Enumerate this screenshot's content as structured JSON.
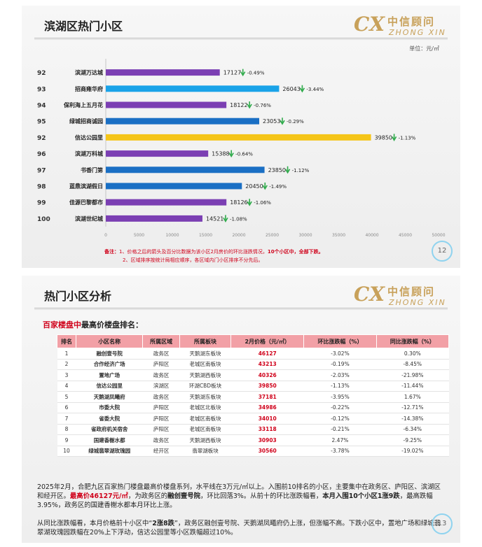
{
  "slide1": {
    "title": "滨湖区热门小区",
    "logo": {
      "mark": "CX",
      "cn": "中信顾问",
      "en": "ZHONG XIN"
    },
    "unit": "单位：元/㎡",
    "page_number": "12",
    "note_lines": [
      {
        "prefix": "备注：",
        "text": "1、价格之后的箭头及百分比数据为该小区2月房价的环比涨跌情况，",
        "bold": "10个小区中，全部下跌。"
      },
      {
        "prefix": "",
        "text": "2、区域排序按统计局相应顺序，各区域内门小区排序不分先后。",
        "bold": ""
      }
    ],
    "chart_data": {
      "type": "bar",
      "orientation": "horizontal",
      "categories": [
        "滨湖万达城",
        "招商雍华府",
        "保利海上五月花",
        "绿城招商诚园",
        "信达公园里",
        "滨湖万科城",
        "书香门第",
        "蓝鼎滨湖假日",
        "佳源巴黎都市",
        "滨湖世纪城"
      ],
      "ranks": [
        "92",
        "93",
        "94",
        "95",
        "92",
        "96",
        "97",
        "98",
        "99",
        "100"
      ],
      "values": [
        17127,
        26043,
        18122,
        23053,
        39850,
        15388,
        23850,
        20450,
        18126,
        14521
      ],
      "changes": [
        "-0.49%",
        "-3.44%",
        "-0.76%",
        "-0.29%",
        "-1.13%",
        "-0.64%",
        "-1.12%",
        "-1.49%",
        "-1.06%",
        "-1.08%"
      ],
      "colors": [
        "#7b3fb3",
        "#1aa3e8",
        "#7b3fb3",
        "#1a6fc4",
        "#f5c518",
        "#7b3fb3",
        "#1a6fc4",
        "#1a6fc4",
        "#7b3fb3",
        "#7b3fb3"
      ],
      "arrow_color": "#2eaa4a",
      "xlim": [
        0,
        50000
      ],
      "xticks": [
        "0",
        "5000",
        "10000",
        "15000",
        "20000",
        "25000",
        "30000",
        "35000",
        "40000",
        "45000",
        "50000"
      ],
      "grid": false
    }
  },
  "slide2": {
    "title": "热门小区分析",
    "logo": {
      "mark": "CX",
      "cn": "中信顾问",
      "en": "ZHONG XIN"
    },
    "subhead_red": "百家楼盘中",
    "subhead_rest": "最高价楼盘排名：",
    "page_number": "13",
    "table": {
      "headers": [
        "排名",
        "小区名称",
        "所属区域",
        "所属板块",
        "2月价格（元/㎡）",
        "环比涨跌幅（%）",
        "同比涨跌幅（%）"
      ],
      "rows": [
        [
          "1",
          "融创壹号院",
          "政务区",
          "天鹅湖东板块",
          "46127",
          "-3.02%",
          "0.30%"
        ],
        [
          "2",
          "合作经济广场",
          "庐阳区",
          "老城区南板块",
          "43213",
          "-0.19%",
          "-8.45%"
        ],
        [
          "3",
          "置地广场",
          "政务区",
          "天鹅湖西板块",
          "40326",
          "-2.03%",
          "-21.98%"
        ],
        [
          "4",
          "信达公园里",
          "滨湖区",
          "环湖CBD板块",
          "39850",
          "-1.13%",
          "-11.44%"
        ],
        [
          "5",
          "天鹅湖凤曦府",
          "政务区",
          "天鹅湖东板块",
          "37181",
          "-3.95%",
          "1.67%"
        ],
        [
          "6",
          "市委大院",
          "庐阳区",
          "老城区北板块",
          "34986",
          "-0.22%",
          "-12.71%"
        ],
        [
          "7",
          "省委大院",
          "庐阳区",
          "老城区南板块",
          "34010",
          "-0.12%",
          "-14.38%"
        ],
        [
          "8",
          "省政府机关宿舍",
          "庐阳区",
          "老城区南板块",
          "33118",
          "-0.21%",
          "-6.34%"
        ],
        [
          "9",
          "国建香榭水都",
          "政务区",
          "天鹅湖西板块",
          "30903",
          "2.47%",
          "-9.25%"
        ],
        [
          "10",
          "绿城翡翠湖玫瑰园",
          "经开区",
          "翡翠湖板块",
          "30560",
          "-3.78%",
          "-19.02%"
        ]
      ]
    },
    "para1": {
      "a": "2025年2月，合肥九区百家热门楼盘最高价楼盘系列，水平线在3万元/㎡以上。入围前10排名的小区，主要集中在政务区、庐阳区、滨湖区和经开区。",
      "red": "最高价46127元/㎡",
      "b": "，为政务区的",
      "bold1": "融创壹号院",
      "c": "，环比回落3%。从前十的环比涨跌幅看，",
      "bold2": "本月入围10个小区1涨9跌",
      "d": "，最高跌幅3.95%，政务区的国建香榭水都本月环比上涨。"
    },
    "para2": {
      "a": "从同比涨跌幅看，本月价格前十小区中“",
      "bold": "2涨8跌",
      "b": "”，政务区融创壹号院、天鹅湖凤曦府仍上涨，但涨幅不高。下跌小区中，置地广场和绿城翡翠湖玫瑰园跌幅在20%上下浮动，信达公园里等小区跌幅超过10%。"
    }
  }
}
